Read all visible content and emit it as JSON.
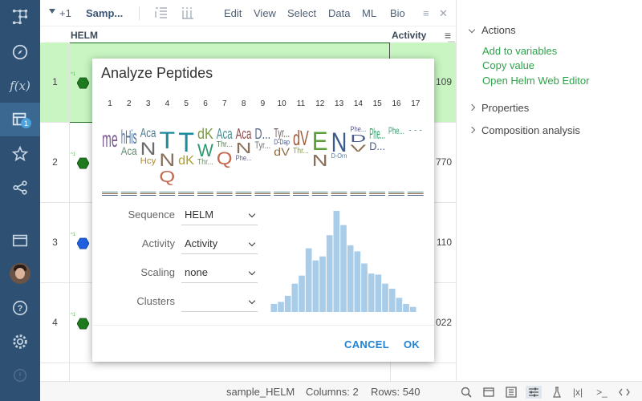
{
  "toolbar": {
    "count": "+1",
    "title": "Samp...",
    "menu": [
      "Edit",
      "View",
      "Select",
      "Data",
      "ML",
      "Bio"
    ]
  },
  "grid": {
    "columns": [
      "HELM",
      "Activity"
    ],
    "rows": [
      {
        "num": "1",
        "activity": "109",
        "selected": true,
        "mol_color": "#2e8b2e"
      },
      {
        "num": "2",
        "activity": "770",
        "selected": false,
        "mol_color": "#2e8b2e"
      },
      {
        "num": "3",
        "activity": "110",
        "selected": false,
        "mol_color": "#1f5fe0"
      },
      {
        "num": "4",
        "activity": "022",
        "selected": false,
        "mol_color": "#2e8b2e"
      }
    ]
  },
  "dialog": {
    "title": "Analyze Peptides",
    "positions": [
      "1",
      "2",
      "3",
      "4",
      "5",
      "6",
      "7",
      "8",
      "9",
      "10",
      "11",
      "12",
      "13",
      "14",
      "15",
      "16",
      "17"
    ],
    "fields": [
      {
        "label": "Sequence",
        "value": "HELM"
      },
      {
        "label": "Activity",
        "value": "Activity"
      },
      {
        "label": "Scaling",
        "value": "none"
      },
      {
        "label": "Clusters",
        "value": ""
      }
    ],
    "cancel": "CANCEL",
    "ok": "OK",
    "histogram": [
      0.08,
      0.1,
      0.16,
      0.28,
      0.36,
      0.63,
      0.51,
      0.55,
      0.76,
      1.0,
      0.86,
      0.66,
      0.6,
      0.48,
      0.38,
      0.37,
      0.28,
      0.23,
      0.14,
      0.08,
      0.05
    ],
    "logo_letters": [
      {
        "col": 1,
        "t": "me",
        "c": "#7a5c8c",
        "s": 28
      },
      {
        "col": 2,
        "t": "hHis",
        "c": "#4b6d9e",
        "s": 24
      },
      {
        "col": 2,
        "t": "Aca",
        "c": "#5b8c6a",
        "s": 14
      },
      {
        "col": 3,
        "t": "Aca",
        "c": "#4b7b8e",
        "s": 16
      },
      {
        "col": 3,
        "t": "N",
        "c": "#6b6b6b",
        "s": 22
      },
      {
        "col": 3,
        "t": "Hcy",
        "c": "#b08c2c",
        "s": 11
      },
      {
        "col": 4,
        "t": "T",
        "c": "#1d8a9e",
        "s": 30
      },
      {
        "col": 4,
        "t": "N",
        "c": "#8a6e5c",
        "s": 22
      },
      {
        "col": 4,
        "t": "Q",
        "c": "#c2694f",
        "s": 20
      },
      {
        "col": 5,
        "t": "T",
        "c": "#1d8a9e",
        "s": 34
      },
      {
        "col": 5,
        "t": "dK",
        "c": "#b0a02c",
        "s": 16
      },
      {
        "col": 6,
        "t": "dK",
        "c": "#7a9a3c",
        "s": 18
      },
      {
        "col": 6,
        "t": "W",
        "c": "#2a9a6e",
        "s": 22
      },
      {
        "col": 6,
        "t": "Thr...",
        "c": "#6b8c6b",
        "s": 10
      },
      {
        "col": 7,
        "t": "Aca",
        "c": "#4b8c8c",
        "s": 18
      },
      {
        "col": 7,
        "t": "Thr...",
        "c": "#5a7a5a",
        "s": 10
      },
      {
        "col": 7,
        "t": "Q",
        "c": "#c2694f",
        "s": 22
      },
      {
        "col": 8,
        "t": "Aca",
        "c": "#8c4b4b",
        "s": 18
      },
      {
        "col": 8,
        "t": "N",
        "c": "#8a6e5c",
        "s": 18
      },
      {
        "col": 8,
        "t": "Phe...",
        "c": "#5c5c8a",
        "s": 9
      },
      {
        "col": 9,
        "t": "D...",
        "c": "#5a6e8c",
        "s": 18
      },
      {
        "col": 9,
        "t": "Tyr...",
        "c": "#6e6e6e",
        "s": 12
      },
      {
        "col": 10,
        "t": "Tyr...",
        "c": "#6e5c5c",
        "s": 16
      },
      {
        "col": 10,
        "t": "D-Dap",
        "c": "#4b5c8c",
        "s": 9
      },
      {
        "col": 10,
        "t": "dV",
        "c": "#8c6e4b",
        "s": 14
      },
      {
        "col": 11,
        "t": "dV",
        "c": "#9c5c3c",
        "s": 26
      },
      {
        "col": 11,
        "t": "Thr...",
        "c": "#7a9a3c",
        "s": 10
      },
      {
        "col": 12,
        "t": "E",
        "c": "#5aa03c",
        "s": 32
      },
      {
        "col": 12,
        "t": "N",
        "c": "#8a6e5c",
        "s": 20
      },
      {
        "col": 13,
        "t": "N",
        "c": "#3c5c8c",
        "s": 34
      },
      {
        "col": 13,
        "t": "D-Orn",
        "c": "#4b7b9e",
        "s": 8
      },
      {
        "col": 14,
        "t": "Phe...",
        "c": "#5c5c8a",
        "s": 9
      },
      {
        "col": 14,
        "t": "D",
        "c": "#4b5c8c",
        "s": 13
      },
      {
        "col": 14,
        "t": "V",
        "c": "#8c6e4b",
        "s": 12
      },
      {
        "col": 15,
        "t": "Phe...",
        "c": "#3c9c6e",
        "s": 18
      },
      {
        "col": 15,
        "t": "D...",
        "c": "#4b5c8c",
        "s": 14
      },
      {
        "col": 16,
        "t": "Phe...",
        "c": "#3c9c6e",
        "s": 12
      },
      {
        "col": 17,
        "t": "...",
        "c": "#5c8c8c",
        "s": 8
      }
    ]
  },
  "right_panel": {
    "actions_title": "Actions",
    "links": [
      "Add to variables",
      "Copy value",
      "Open Helm Web Editor"
    ],
    "properties": "Properties",
    "composition": "Composition analysis"
  },
  "status": {
    "table": "sample_HELM",
    "columns": "Columns: 2",
    "rows": "Rows: 540"
  },
  "nav": {
    "badge": "1",
    "icons": [
      "datagrok-logo-icon",
      "compass-icon",
      "function-icon",
      "table-icon",
      "star-icon",
      "share-icon",
      "window-icon",
      "avatar",
      "help-icon",
      "gear-icon",
      "info-icon"
    ]
  },
  "colors": {
    "nav_bg": "#2d5073",
    "selection": "#c8f5c2",
    "accent": "#2083d5",
    "link": "#2fa34b",
    "histogram": "#a9cde9"
  }
}
